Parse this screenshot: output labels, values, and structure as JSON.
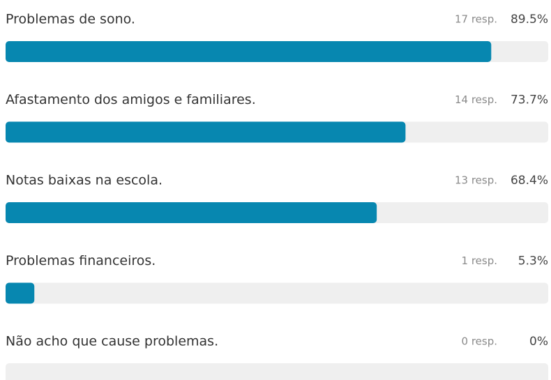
{
  "chart_data": {
    "type": "bar",
    "orientation": "horizontal",
    "categories": [
      "Problemas de sono.",
      "Afastamento dos amigos e familiares.",
      "Notas baixas na escola.",
      "Problemas financeiros.",
      "Não acho que cause problemas."
    ],
    "values": [
      89.5,
      73.7,
      68.4,
      5.3,
      0
    ],
    "value_labels": [
      "89.5%",
      "73.7%",
      "68.4%",
      "5.3%",
      "0%"
    ],
    "responses": [
      "17 resp.",
      "14 resp.",
      "13 resp.",
      "1 resp.",
      "0 resp."
    ],
    "color": "#0787b0",
    "track_color": "#efefef",
    "xlim": [
      0,
      100
    ]
  }
}
